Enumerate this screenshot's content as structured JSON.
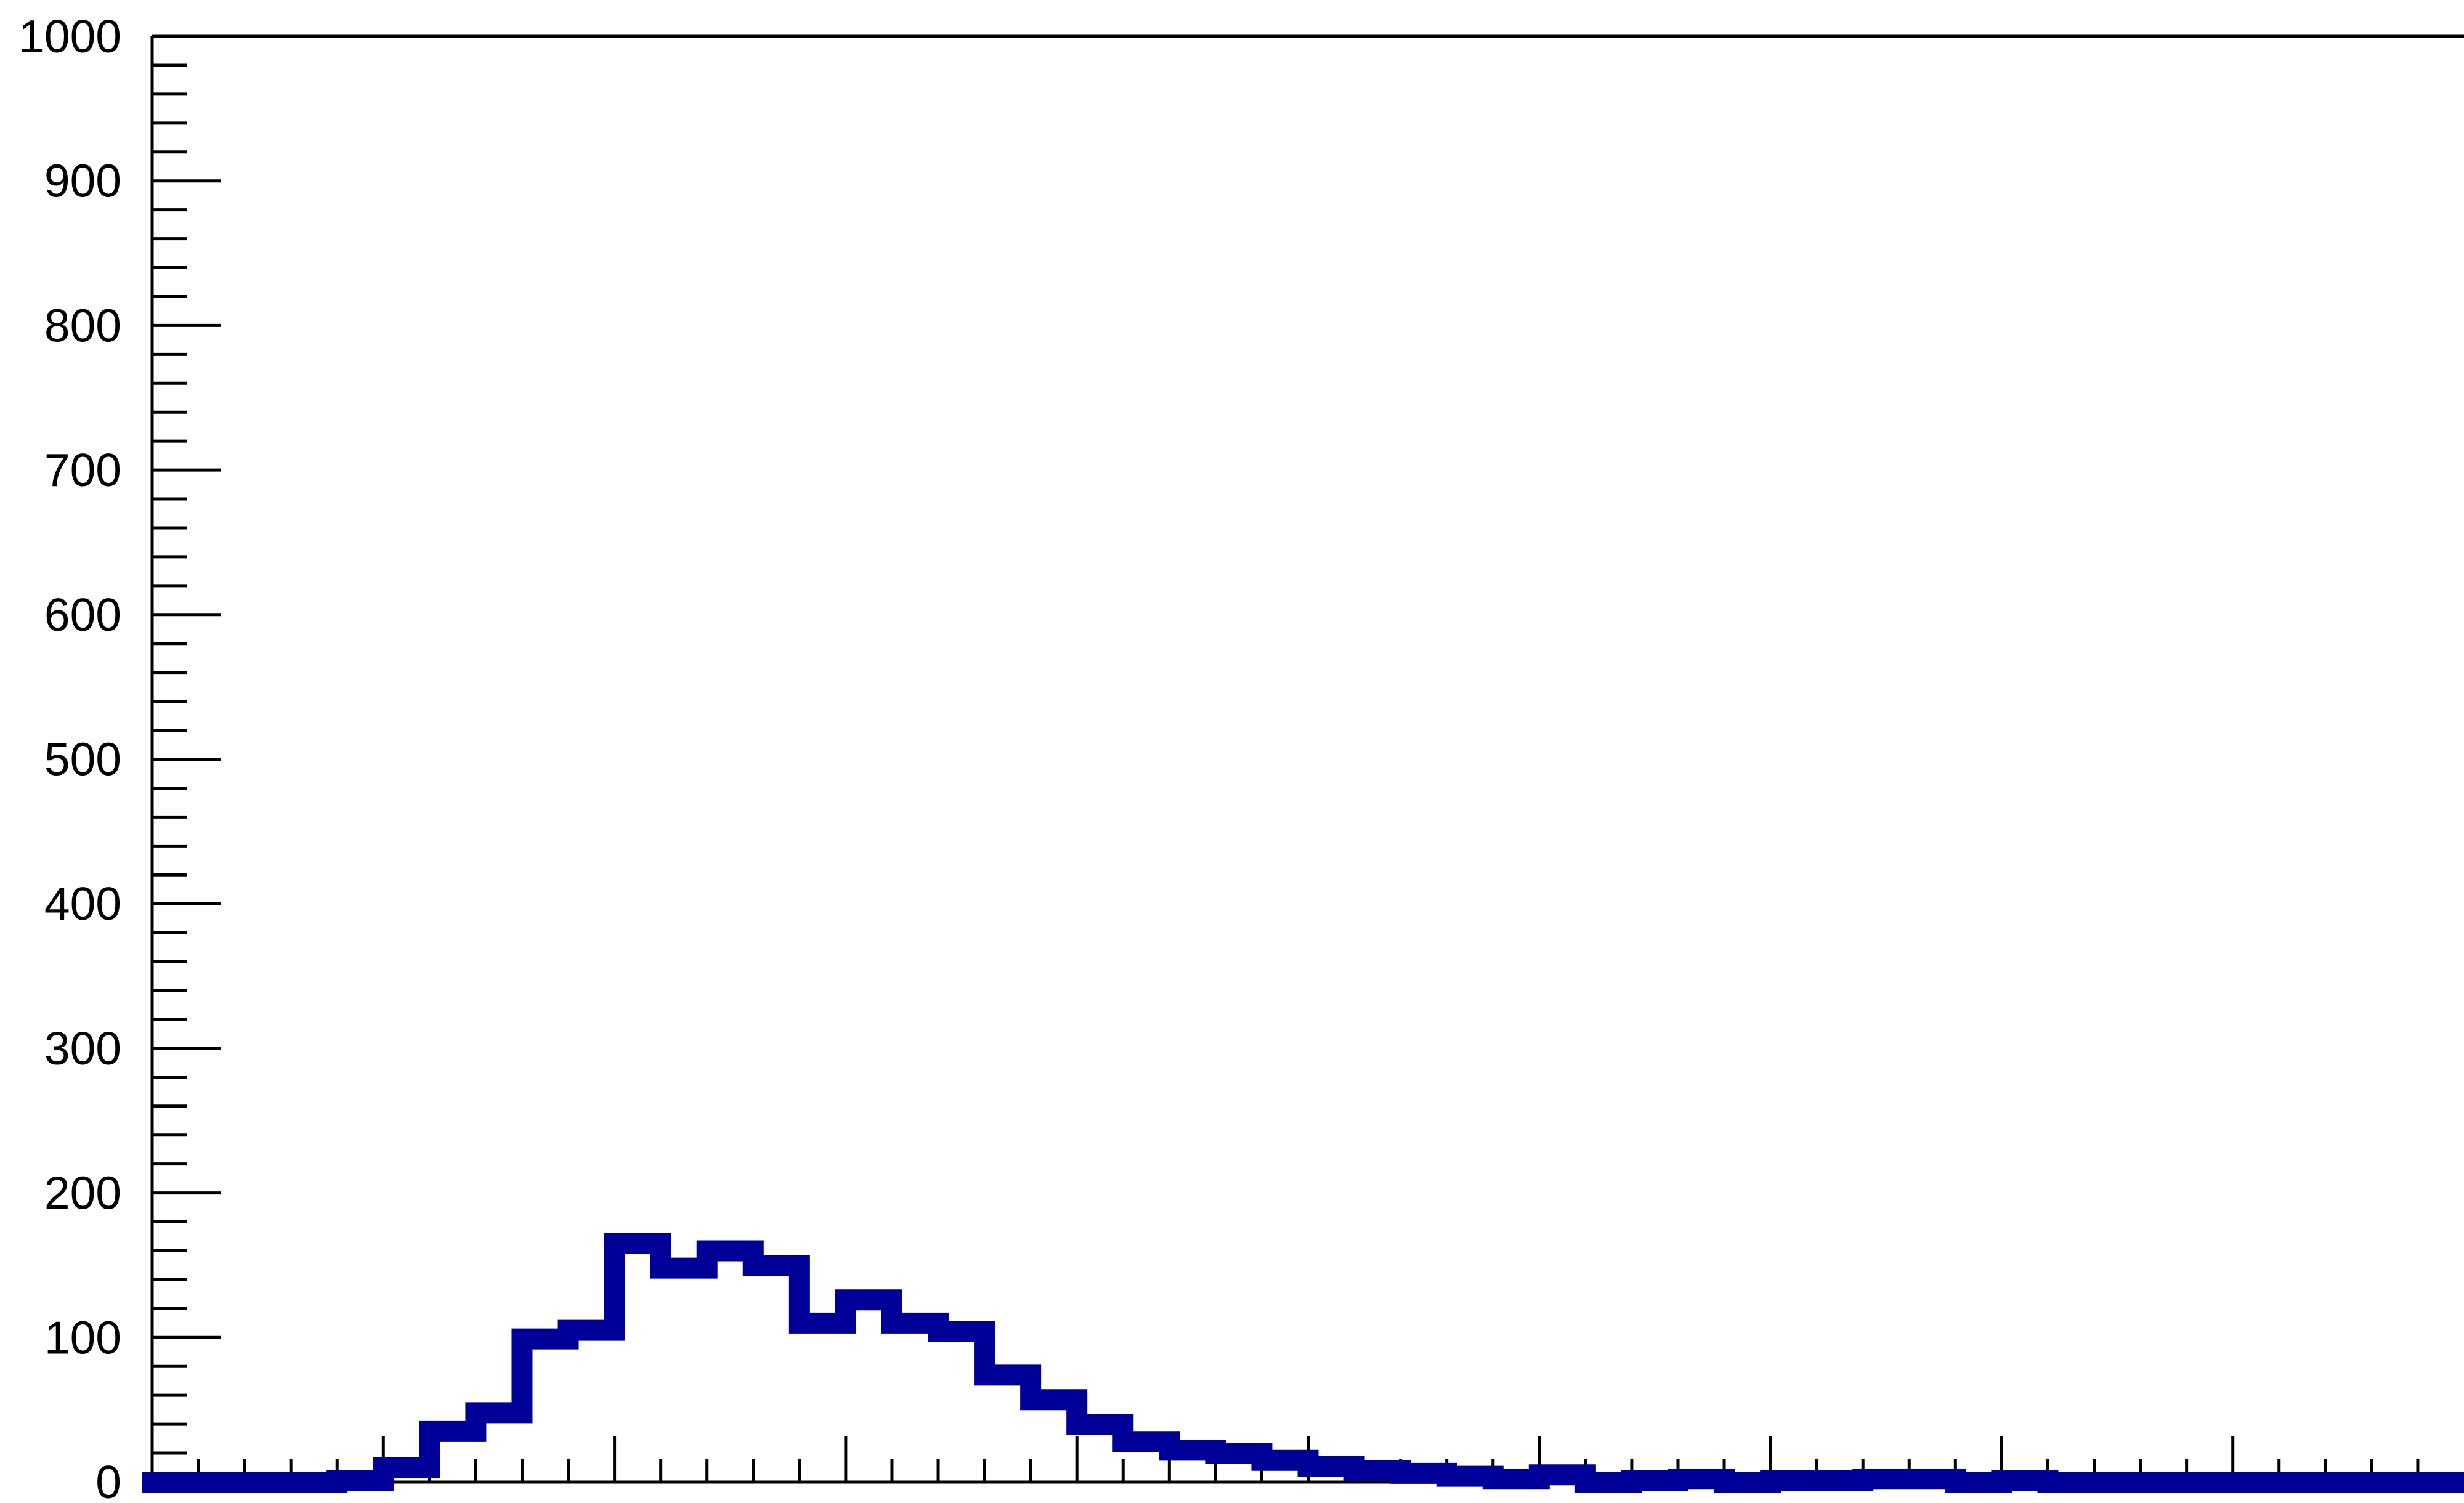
{
  "chart_data": {
    "type": "bar",
    "style": "step-histogram",
    "title": "",
    "xlabel": "",
    "ylabel": "",
    "ylim": [
      0,
      1000
    ],
    "xlim": [
      0,
      50
    ],
    "y_ticks": [
      "0",
      "100",
      "200",
      "300",
      "400",
      "500",
      "600",
      "700",
      "800",
      "900",
      "1000"
    ],
    "x_major_ticks": [
      5,
      10,
      15,
      20,
      25,
      30,
      35,
      40,
      45
    ],
    "grid": false,
    "legend": "none",
    "colors": {
      "line": "#000099",
      "axes": "#000000",
      "background": "#ffffff"
    },
    "bin_width": 1,
    "series": [
      {
        "values": [
          0,
          0,
          0,
          0,
          1,
          10,
          35,
          48,
          99,
          105,
          165,
          148,
          160,
          150,
          110,
          126,
          110,
          104,
          74,
          57,
          40,
          28,
          22,
          20,
          15,
          11,
          8,
          6,
          4,
          2,
          5,
          0,
          1,
          2,
          0,
          1,
          1,
          2,
          2,
          0,
          1,
          0,
          0,
          0,
          0,
          0,
          0,
          0,
          0,
          0
        ]
      }
    ]
  }
}
